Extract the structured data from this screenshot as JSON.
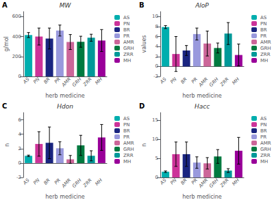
{
  "chart_data": [
    {
      "type": "bar",
      "title": "MW",
      "annotation": "A",
      "xlabel": "herb medicine",
      "ylabel": "g/mol",
      "categories": [
        "AS",
        "PN",
        "BR",
        "PR",
        "AMR",
        "GRH",
        "ZRR",
        "MH"
      ],
      "values": [
        415,
        400,
        380,
        460,
        345,
        348,
        388,
        360
      ],
      "errors": [
        25,
        85,
        105,
        55,
        75,
        55,
        35,
        110
      ],
      "colors": [
        "#00AEAE",
        "#CC3399",
        "#1A2580",
        "#9999DD",
        "#CC6699",
        "#007A40",
        "#009999",
        "#990099"
      ],
      "ylim": [
        0,
        650
      ],
      "yticks": [
        0,
        200,
        400,
        600
      ],
      "grid": false,
      "legend": "right"
    },
    {
      "type": "bar",
      "title": "AloP",
      "annotation": "B",
      "xlabel": "herb medicine",
      "ylabel": "values",
      "categories": [
        "AS",
        "PN",
        "BR",
        "PR",
        "AMR",
        "GRH",
        "ZRR",
        "MH"
      ],
      "values": [
        7.9,
        2.5,
        3.2,
        6.5,
        4.6,
        3.7,
        6.6,
        2.3
      ],
      "errors": [
        0.3,
        3.5,
        1.0,
        1.2,
        2.5,
        1.0,
        2.2,
        2.2
      ],
      "colors": [
        "#00AEAE",
        "#CC3399",
        "#1A2580",
        "#9999DD",
        "#CC6699",
        "#007A40",
        "#009999",
        "#990099"
      ],
      "ylim": [
        -2,
        11
      ],
      "yticks": [
        -2,
        0,
        2,
        4,
        6,
        8,
        10
      ],
      "grid": false,
      "legend": "right"
    },
    {
      "type": "bar",
      "title": "Hdon",
      "annotation": "C",
      "xlabel": "herb medicine",
      "ylabel": "n",
      "categories": [
        "AS",
        "PN",
        "BR",
        "PR",
        "AMR",
        "GRH",
        "ZRR",
        "MH"
      ],
      "values": [
        1.0,
        2.65,
        2.8,
        2.05,
        0.5,
        2.45,
        1.0,
        3.55
      ],
      "errors": [
        0.1,
        1.7,
        2.2,
        0.9,
        0.55,
        1.4,
        0.7,
        1.8
      ],
      "colors": [
        "#00AEAE",
        "#CC3399",
        "#1A2580",
        "#9999DD",
        "#CC6699",
        "#007A40",
        "#009999",
        "#990099"
      ],
      "ylim": [
        -2,
        7
      ],
      "yticks": [
        -2,
        0,
        2,
        4,
        6
      ],
      "grid": false,
      "legend": "right"
    },
    {
      "type": "bar",
      "title": "Hacc",
      "annotation": "D",
      "xlabel": "herb medicine",
      "ylabel": "n",
      "categories": [
        "AS",
        "PN",
        "BR",
        "PR",
        "AMR",
        "GRH",
        "ZRR",
        "MH"
      ],
      "values": [
        1.5,
        6.1,
        6.1,
        3.9,
        3.7,
        5.5,
        1.8,
        7.0
      ],
      "errors": [
        0.2,
        3.2,
        3.2,
        1.5,
        1.5,
        1.8,
        0.5,
        3.5
      ],
      "colors": [
        "#00AEAE",
        "#CC3399",
        "#1A2580",
        "#9999DD",
        "#CC6699",
        "#007A40",
        "#009999",
        "#990099"
      ],
      "ylim": [
        0,
        17
      ],
      "yticks": [
        0,
        5,
        10,
        15
      ],
      "grid": false,
      "legend": "right"
    }
  ]
}
